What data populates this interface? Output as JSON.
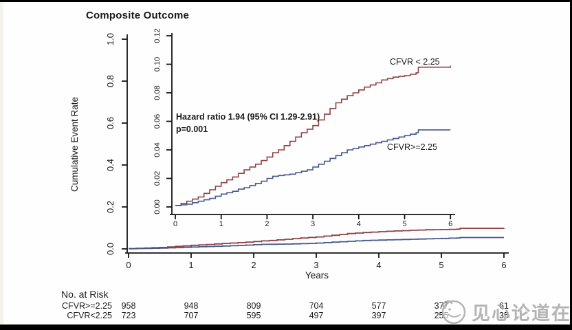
{
  "title": "Composite Outcome",
  "colors": {
    "red": "#8f4145",
    "blue": "#44598c",
    "axis": "#141414",
    "watermark": "#a8a8a8"
  },
  "chart_data": {
    "type": "line",
    "title": "Composite Outcome",
    "xlabel": "Years",
    "ylabel": "Cumulative Event Rate",
    "x_range": [
      0,
      6
    ],
    "grid": false,
    "main_axis": {
      "ylim": [
        0,
        1.0
      ],
      "ytick_values": [
        0,
        0.2,
        0.4,
        0.6,
        0.8,
        1.0
      ],
      "ytick_labels": [
        "0.0",
        "0.2",
        "0.4",
        "0.6",
        "0.8",
        "1.0"
      ],
      "xtick_values": [
        0,
        1,
        2,
        3,
        4,
        5,
        6
      ],
      "xtick_labels": [
        "0",
        "1",
        "2",
        "3",
        "4",
        "5",
        "6"
      ]
    },
    "inset_axis": {
      "ylim": [
        0,
        0.12
      ],
      "ytick_values": [
        0,
        0.02,
        0.04,
        0.06,
        0.08,
        0.1,
        0.12
      ],
      "ytick_labels": [
        "0.00",
        "0.02",
        "0.04",
        "0.06",
        "0.08",
        "0.10",
        "0.12"
      ],
      "xtick_values": [
        0,
        1,
        2,
        3,
        4,
        5,
        6
      ],
      "xtick_labels": [
        "0",
        "1",
        "2",
        "3",
        "4",
        "5",
        "6"
      ]
    },
    "annotations": [
      "Hazard ratio 1.94 (95% CI 1.29-2.91)",
      "p=0.001"
    ],
    "series": [
      {
        "name": "CFVR < 2.25",
        "color": "#8f4145",
        "step": true,
        "points": [
          [
            0,
            0.001
          ],
          [
            0.125,
            0.0025
          ],
          [
            0.25,
            0.004
          ],
          [
            0.375,
            0.0055
          ],
          [
            0.5,
            0.007
          ],
          [
            0.625,
            0.0095
          ],
          [
            0.75,
            0.012
          ],
          [
            0.875,
            0.0145
          ],
          [
            1,
            0.017
          ],
          [
            1.125,
            0.019
          ],
          [
            1.25,
            0.021
          ],
          [
            1.375,
            0.0235
          ],
          [
            1.5,
            0.026
          ],
          [
            1.625,
            0.028
          ],
          [
            1.75,
            0.03
          ],
          [
            1.875,
            0.0325
          ],
          [
            2,
            0.035
          ],
          [
            2.125,
            0.038
          ],
          [
            2.25,
            0.04
          ],
          [
            2.375,
            0.043
          ],
          [
            2.5,
            0.046
          ],
          [
            2.625,
            0.049
          ],
          [
            2.75,
            0.052
          ],
          [
            2.875,
            0.0545
          ],
          [
            3,
            0.057
          ],
          [
            3.125,
            0.061
          ],
          [
            3.25,
            0.065
          ],
          [
            3.375,
            0.069
          ],
          [
            3.5,
            0.073
          ],
          [
            3.625,
            0.0755
          ],
          [
            3.75,
            0.078
          ],
          [
            3.875,
            0.08
          ],
          [
            4,
            0.082
          ],
          [
            4.125,
            0.084
          ],
          [
            4.25,
            0.0855
          ],
          [
            4.375,
            0.087
          ],
          [
            4.5,
            0.089
          ],
          [
            4.625,
            0.09
          ],
          [
            4.75,
            0.091
          ],
          [
            4.875,
            0.0915
          ],
          [
            5,
            0.092
          ],
          [
            5.125,
            0.093
          ],
          [
            5.25,
            0.094
          ],
          [
            5.3,
            0.098
          ],
          [
            6,
            0.099
          ]
        ]
      },
      {
        "name": "CFVR>=2.25",
        "color": "#44598c",
        "step": true,
        "points": [
          [
            0,
            0.001
          ],
          [
            0.125,
            0.0015
          ],
          [
            0.25,
            0.002
          ],
          [
            0.375,
            0.003
          ],
          [
            0.5,
            0.004
          ],
          [
            0.625,
            0.005
          ],
          [
            0.75,
            0.006
          ],
          [
            0.875,
            0.0075
          ],
          [
            1,
            0.009
          ],
          [
            1.125,
            0.01
          ],
          [
            1.25,
            0.011
          ],
          [
            1.375,
            0.0125
          ],
          [
            1.5,
            0.0135
          ],
          [
            1.625,
            0.015
          ],
          [
            1.75,
            0.0165
          ],
          [
            1.875,
            0.018
          ],
          [
            2,
            0.02
          ],
          [
            2.125,
            0.0215
          ],
          [
            2.25,
            0.022
          ],
          [
            2.375,
            0.0225
          ],
          [
            2.5,
            0.023
          ],
          [
            2.625,
            0.024
          ],
          [
            2.75,
            0.025
          ],
          [
            2.875,
            0.026
          ],
          [
            3,
            0.028
          ],
          [
            3.125,
            0.03
          ],
          [
            3.25,
            0.032
          ],
          [
            3.375,
            0.034
          ],
          [
            3.5,
            0.036
          ],
          [
            3.625,
            0.038
          ],
          [
            3.75,
            0.04
          ],
          [
            3.875,
            0.041
          ],
          [
            4,
            0.042
          ],
          [
            4.125,
            0.043
          ],
          [
            4.25,
            0.044
          ],
          [
            4.375,
            0.045
          ],
          [
            4.5,
            0.046
          ],
          [
            4.625,
            0.047
          ],
          [
            4.75,
            0.048
          ],
          [
            4.875,
            0.049
          ],
          [
            5,
            0.05
          ],
          [
            5.125,
            0.051
          ],
          [
            5.25,
            0.052
          ],
          [
            5.3,
            0.054
          ],
          [
            6,
            0.054
          ]
        ]
      }
    ]
  },
  "risk_table": {
    "title": "No. at Risk",
    "rows": [
      {
        "label": "CFVR>=2.25",
        "values": [
          "958",
          "948",
          "809",
          "704",
          "577",
          "377",
          "61"
        ]
      },
      {
        "label": "CFVR<2.25",
        "values": [
          "723",
          "707",
          "595",
          "497",
          "397",
          "255",
          "35"
        ]
      }
    ]
  },
  "watermark": {
    "text": "见心论道在线"
  }
}
